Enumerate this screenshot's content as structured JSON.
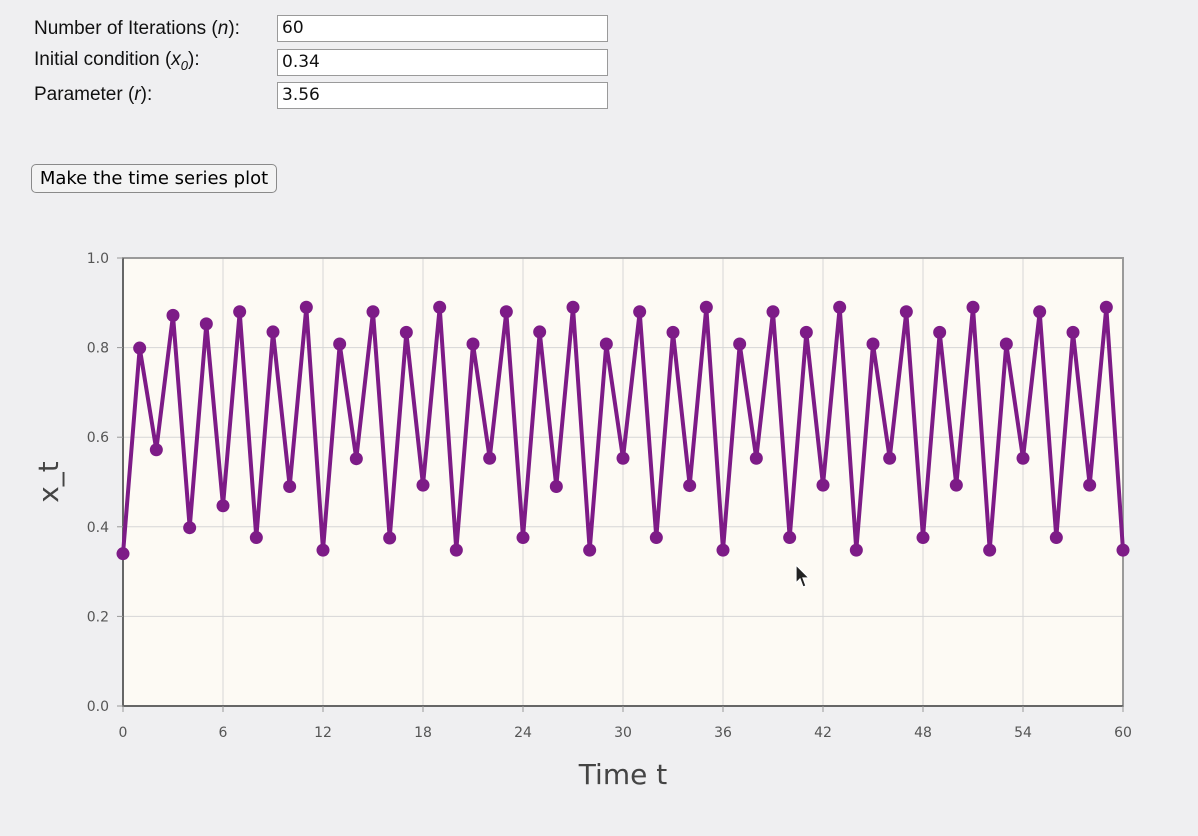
{
  "form": {
    "iterations": {
      "label_pre": "Number of Iterations (",
      "label_var": "n",
      "label_post": "):",
      "value": "60"
    },
    "initial": {
      "label_pre": "Initial condition (",
      "label_var": "x",
      "label_sub": "0",
      "label_post": "):",
      "value": "0.34"
    },
    "parameter": {
      "label_pre": "Parameter (",
      "label_var": "r",
      "label_post": "):",
      "value": "3.56"
    },
    "button_label": "Make the time series plot"
  },
  "colors": {
    "series": "#7d1b87",
    "plot_bg": "#fdfaf4",
    "grid": "#d6d6d6",
    "axis": "#999999"
  },
  "chart_data": {
    "type": "line",
    "xlabel": "Time t",
    "ylabel": "x_t",
    "xlim": [
      0,
      60
    ],
    "ylim": [
      0,
      1
    ],
    "xticks": [
      0,
      6,
      12,
      18,
      24,
      30,
      36,
      42,
      48,
      54,
      60
    ],
    "yticks": [
      "0.0",
      "0.2",
      "0.4",
      "0.6",
      "0.8",
      "1.0"
    ],
    "grid": true,
    "markers": true,
    "series": [
      {
        "x": [
          0,
          1,
          2,
          3,
          4,
          5,
          6,
          7,
          8,
          9,
          10,
          11,
          12,
          13,
          14,
          15,
          16,
          17,
          18,
          19,
          20,
          21,
          22,
          23,
          24,
          25,
          26,
          27,
          28,
          29,
          30,
          31,
          32,
          33,
          34,
          35,
          36,
          37,
          38,
          39,
          40,
          41,
          42,
          43,
          44,
          45,
          46,
          47,
          48,
          49,
          50,
          51,
          52,
          53,
          54,
          55,
          56,
          57,
          58,
          59,
          60
        ],
        "values": [
          0.34,
          0.799,
          0.572,
          0.872,
          0.398,
          0.853,
          0.447,
          0.88,
          0.376,
          0.835,
          0.49,
          0.89,
          0.348,
          0.808,
          0.552,
          0.88,
          0.375,
          0.834,
          0.493,
          0.89,
          0.348,
          0.808,
          0.553,
          0.88,
          0.376,
          0.835,
          0.49,
          0.89,
          0.348,
          0.808,
          0.553,
          0.88,
          0.376,
          0.834,
          0.492,
          0.89,
          0.348,
          0.808,
          0.553,
          0.88,
          0.376,
          0.834,
          0.493,
          0.89,
          0.348,
          0.808,
          0.553,
          0.88,
          0.376,
          0.834,
          0.493,
          0.89,
          0.348,
          0.808,
          0.553,
          0.88,
          0.376,
          0.834,
          0.493,
          0.89,
          0.348
        ]
      }
    ]
  }
}
